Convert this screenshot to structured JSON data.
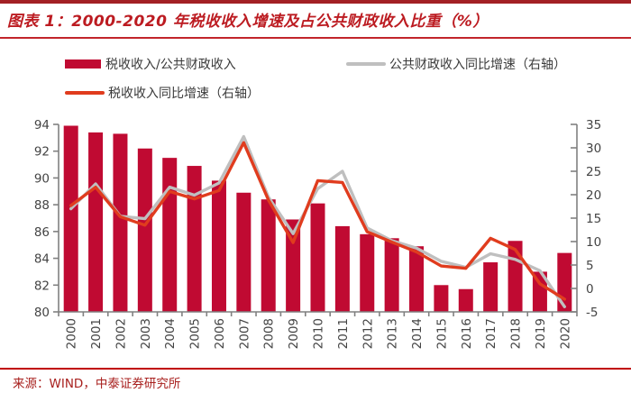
{
  "header": {
    "title": "图表 1：2000-2020 年税收收入增速及占公共财政收入比重（%）"
  },
  "legend": {
    "items": [
      {
        "type": "bar",
        "label": "税收收入/公共财政收入",
        "color": "#C00A32"
      },
      {
        "type": "line",
        "label": "公共财政收入同比增速（右轴）",
        "color": "#BFBFBF"
      },
      {
        "type": "line",
        "label": "税收收入同比增速（右轴）",
        "color": "#E03C1E"
      }
    ]
  },
  "chart_data": {
    "type": "bar+line combo",
    "title": "2000-2020 年税收收入增速及占公共财政收入比重（%）",
    "categories": [
      "2000",
      "2001",
      "2002",
      "2003",
      "2004",
      "2005",
      "2006",
      "2007",
      "2008",
      "2009",
      "2010",
      "2011",
      "2012",
      "2013",
      "2014",
      "2015",
      "2016",
      "2017",
      "2018",
      "2019",
      "2020"
    ],
    "series": [
      {
        "name": "税收收入/公共财政收入",
        "type": "bar",
        "axis": "left",
        "color": "#C00A32",
        "values": [
          93.9,
          93.4,
          93.3,
          92.2,
          91.5,
          90.9,
          89.8,
          88.9,
          88.4,
          86.9,
          88.1,
          86.4,
          85.8,
          85.5,
          84.9,
          82.0,
          81.7,
          83.7,
          85.3,
          83.0,
          84.4
        ]
      },
      {
        "name": "公共财政收入同比增速（右轴）",
        "type": "line",
        "axis": "right",
        "color": "#BFBFBF",
        "values": [
          17.0,
          22.3,
          15.4,
          14.9,
          21.6,
          19.9,
          22.5,
          32.4,
          19.5,
          11.7,
          21.3,
          25.0,
          12.9,
          10.2,
          8.6,
          5.8,
          4.5,
          7.4,
          6.2,
          3.8,
          -3.9
        ]
      },
      {
        "name": "税收收入同比增速（右轴）",
        "type": "line",
        "axis": "right",
        "color": "#E03C1E",
        "values": [
          17.7,
          21.6,
          15.3,
          13.5,
          20.7,
          19.1,
          20.9,
          31.1,
          18.9,
          9.8,
          23.0,
          22.6,
          12.1,
          9.9,
          7.8,
          4.8,
          4.3,
          10.7,
          8.3,
          1.0,
          -2.3
        ]
      }
    ],
    "left_axis": {
      "min": 80,
      "max": 94,
      "ticks": [
        94,
        92,
        90,
        88,
        86,
        84,
        82,
        80
      ]
    },
    "right_axis": {
      "min": -5,
      "max": 35,
      "ticks": [
        35,
        30,
        25,
        20,
        15,
        10,
        5,
        0,
        -5
      ]
    },
    "grid": "off",
    "legend_position": "top"
  },
  "footer": {
    "source": "来源：WIND，中泰证券研究所"
  }
}
